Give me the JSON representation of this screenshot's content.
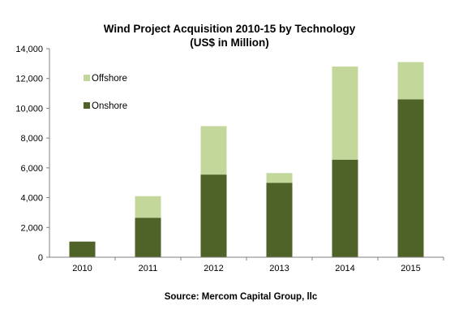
{
  "chart_data": {
    "type": "bar",
    "stacked": true,
    "title": "Wind Project Acquisition  2010-15  by Technology",
    "subtitle": "(US$ in Million)",
    "categories": [
      "2010",
      "2011",
      "2012",
      "2013",
      "2014",
      "2015"
    ],
    "series": [
      {
        "name": "Onshore",
        "color": "#4f6228",
        "values": [
          1050,
          2650,
          5550,
          5000,
          6550,
          10600
        ]
      },
      {
        "name": "Offshore",
        "color": "#c4d79b",
        "values": [
          0,
          1450,
          3250,
          650,
          6250,
          2500
        ]
      }
    ],
    "ylim": [
      0,
      14000
    ],
    "yticks": [
      "0",
      "2,000",
      "4,000",
      "6,000",
      "8,000",
      "10,000",
      "12,000",
      "14,000"
    ],
    "grid": false,
    "legend": {
      "position": "top-left-inside",
      "order": [
        "Offshore",
        "Onshore"
      ]
    },
    "source": "Source: Mercom Capital Group, llc"
  }
}
